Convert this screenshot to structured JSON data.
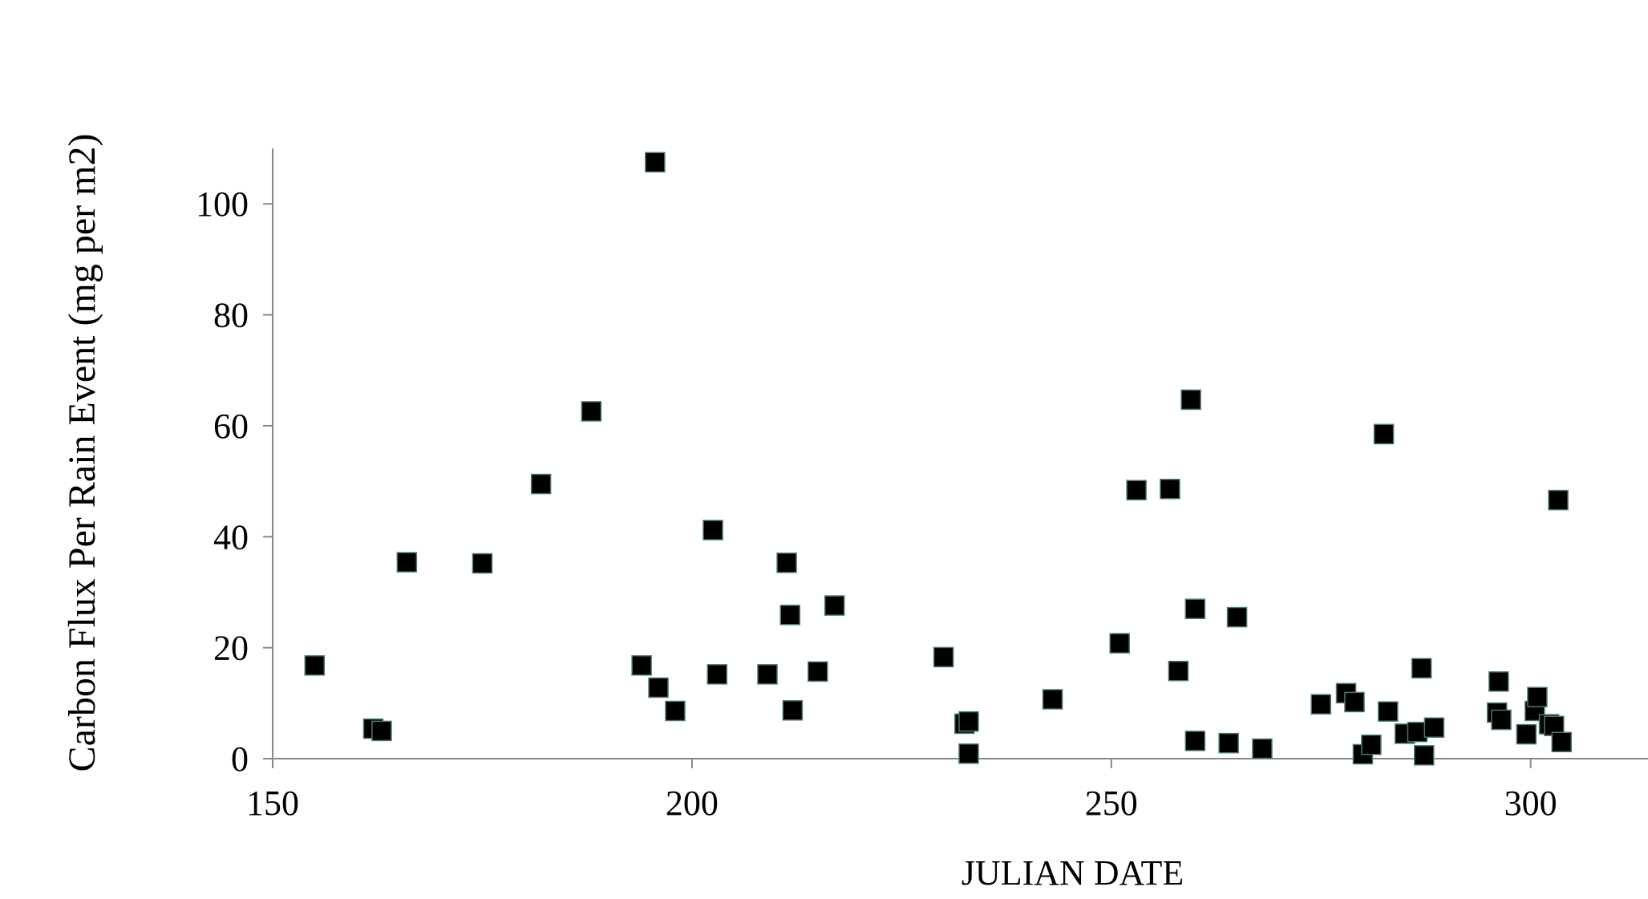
{
  "chart_data": {
    "type": "scatter",
    "title": "",
    "xlabel": "JULIAN DATE",
    "ylabel": "Carbon Flux Per Rain Event (mg per m2)",
    "xlim": [
      150,
      314
    ],
    "ylim": [
      0,
      110
    ],
    "xticks": [
      150,
      200,
      250,
      300
    ],
    "yticks": [
      0,
      20,
      40,
      60,
      80,
      100
    ],
    "grid": false,
    "legend": "none",
    "marker": "square",
    "marker_color": "#000000",
    "series": [
      {
        "points": [
          [
            155,
            16.8
          ],
          [
            162,
            5.4
          ],
          [
            163,
            5.0
          ],
          [
            166,
            35.4
          ],
          [
            175,
            35.2
          ],
          [
            182,
            49.5
          ],
          [
            188,
            62.6
          ],
          [
            194,
            16.8
          ],
          [
            195.6,
            107.5
          ],
          [
            196,
            12.8
          ],
          [
            198,
            8.6
          ],
          [
            202.5,
            41.2
          ],
          [
            203,
            15.2
          ],
          [
            209,
            15.2
          ],
          [
            211.3,
            35.3
          ],
          [
            211.7,
            25.9
          ],
          [
            212,
            8.7
          ],
          [
            215,
            15.7
          ],
          [
            217,
            27.6
          ],
          [
            230,
            18.3
          ],
          [
            232.5,
            6.3
          ],
          [
            233,
            0.9
          ],
          [
            233,
            6.7
          ],
          [
            243,
            10.7
          ],
          [
            251,
            20.8
          ],
          [
            253,
            48.4
          ],
          [
            257,
            48.6
          ],
          [
            258,
            15.8
          ],
          [
            259.5,
            64.7
          ],
          [
            260,
            3.2
          ],
          [
            260,
            27.0
          ],
          [
            264,
            2.8
          ],
          [
            265,
            25.5
          ],
          [
            268,
            1.8
          ],
          [
            275,
            9.8
          ],
          [
            278,
            11.8
          ],
          [
            279,
            10.2
          ],
          [
            280,
            0.8
          ],
          [
            281,
            2.5
          ],
          [
            282.5,
            58.5
          ],
          [
            283,
            8.5
          ],
          [
            285,
            4.5
          ],
          [
            286.5,
            4.8
          ],
          [
            287,
            16.3
          ],
          [
            287.3,
            0.6
          ],
          [
            288.5,
            5.6
          ],
          [
            296,
            8.3
          ],
          [
            296.2,
            13.9
          ],
          [
            296.5,
            7.0
          ],
          [
            299.5,
            4.4
          ],
          [
            300.5,
            8.6
          ],
          [
            300.8,
            11.1
          ],
          [
            302.2,
            6.2
          ],
          [
            302.8,
            5.9
          ],
          [
            303.3,
            46.6
          ],
          [
            303.7,
            3.0
          ]
        ]
      }
    ]
  }
}
